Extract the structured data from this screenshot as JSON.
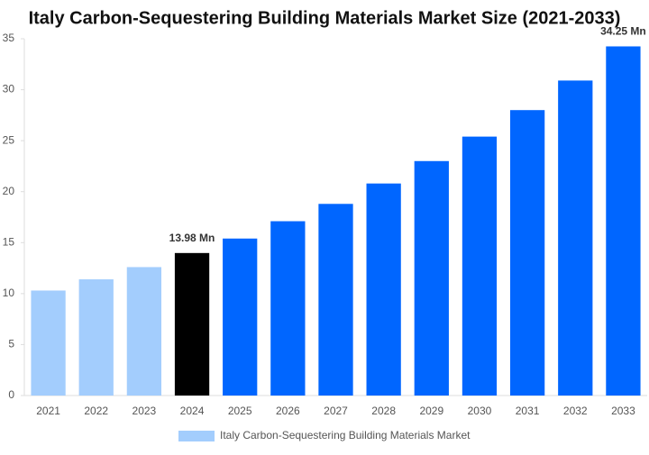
{
  "chart_data": {
    "type": "bar",
    "title": "Italy Carbon-Sequestering Building Materials Market Size (2021-2033)",
    "categories": [
      "2021",
      "2022",
      "2023",
      "2024",
      "2025",
      "2026",
      "2027",
      "2028",
      "2029",
      "2030",
      "2031",
      "2032",
      "2033"
    ],
    "series": [
      {
        "name": "Italy Carbon-Sequestering Building Materials Market",
        "color": "#a3cdfd",
        "colors": [
          "#a3cdfd",
          "#a3cdfd",
          "#a3cdfd",
          "#000000",
          "#0066ff",
          "#0066ff",
          "#0066ff",
          "#0066ff",
          "#0066ff",
          "#0066ff",
          "#0066ff",
          "#0066ff",
          "#0066ff"
        ],
        "values": [
          10.3,
          11.4,
          12.6,
          13.98,
          15.4,
          17.1,
          18.8,
          20.8,
          23.0,
          25.4,
          28.0,
          30.9,
          34.25
        ],
        "value_labels": [
          null,
          null,
          null,
          "13.98 Mn",
          null,
          null,
          null,
          null,
          null,
          null,
          null,
          null,
          "34.25 Mn"
        ]
      }
    ],
    "ylim": [
      0,
      35
    ],
    "yticks": [
      0,
      5,
      10,
      15,
      20,
      25,
      30,
      35
    ],
    "grid": false,
    "legend": "bottom"
  }
}
